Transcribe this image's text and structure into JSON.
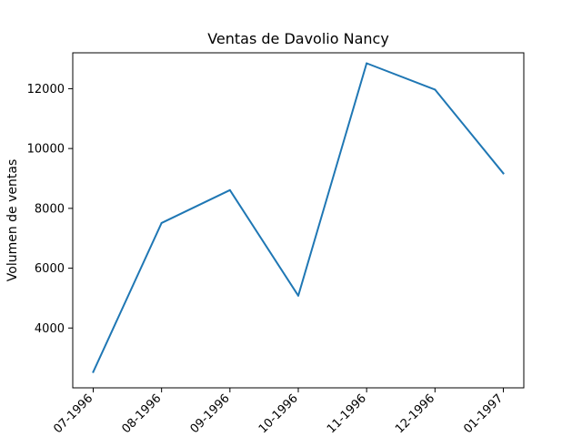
{
  "chart_data": {
    "type": "line",
    "title": "Ventas de Davolio Nancy",
    "xlabel": "",
    "ylabel": "Volumen de ventas",
    "categories": [
      "07-1996",
      "08-1996",
      "09-1996",
      "10-1996",
      "11-1996",
      "12-1996",
      "01-1997"
    ],
    "series": [
      {
        "values": [
          2530,
          7510,
          8610,
          5080,
          12850,
          11970,
          9170
        ],
        "color": "#1f77b4"
      }
    ],
    "ylim": [
      2000,
      13200
    ],
    "yticks": [
      4000,
      6000,
      8000,
      10000,
      12000
    ],
    "grid": false,
    "legend": "none"
  }
}
